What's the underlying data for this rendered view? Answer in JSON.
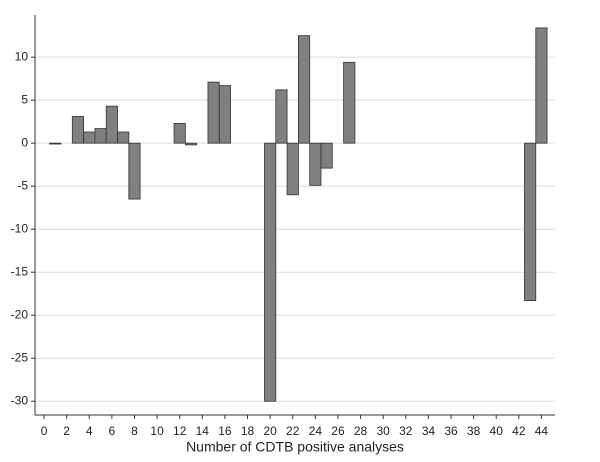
{
  "chart_data": {
    "type": "bar",
    "xlabel": "Number of CDTB positive analyses",
    "x": [
      1,
      3,
      4,
      5,
      6,
      7,
      8,
      12,
      13,
      15,
      16,
      20,
      21,
      22,
      23,
      24,
      25,
      27,
      43,
      44
    ],
    "values": [
      -0.1,
      3.1,
      1.3,
      1.7,
      4.3,
      1.3,
      -6.5,
      2.3,
      -0.2,
      7.1,
      6.7,
      -30,
      6.2,
      -6,
      12.5,
      -4.9,
      -2.9,
      9.4,
      -18.3,
      13.4
    ],
    "color": "#808080",
    "xlim": [
      -0.8,
      45.2
    ],
    "ylim": [
      -31.6,
      14.9
    ],
    "xticks": [
      0,
      2,
      4,
      6,
      8,
      10,
      12,
      14,
      16,
      18,
      20,
      22,
      24,
      26,
      28,
      30,
      32,
      34,
      36,
      38,
      40,
      42,
      44
    ],
    "yticks": [
      -30,
      -25,
      -20,
      -15,
      -10,
      -5,
      0,
      5,
      10
    ],
    "grid": true
  }
}
